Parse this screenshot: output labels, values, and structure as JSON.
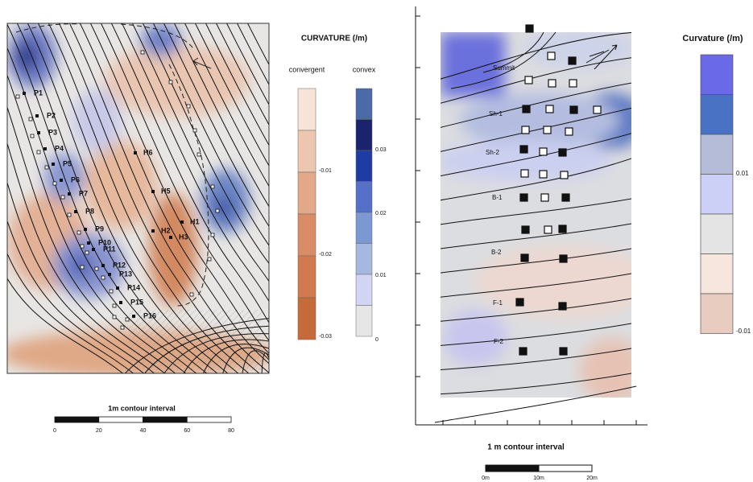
{
  "left_map": {
    "legend_title": "CURVATURE (/m)",
    "convergent_label": "convergent",
    "convex_label": "convex",
    "convergent_ticks": [
      "-0.01",
      "-0.02",
      "-0.03"
    ],
    "convex_ticks": [
      "0.03",
      "0.02",
      "0.01",
      "0"
    ],
    "points": [
      "P1",
      "P2",
      "P3",
      "P4",
      "P5",
      "P6",
      "P7",
      "P8",
      "P9",
      "P10",
      "P11",
      "P12",
      "P13",
      "P14",
      "P15",
      "P16"
    ],
    "hollows": [
      "H6",
      "H5",
      "H1",
      "H2",
      "H3"
    ],
    "scale_title": "1m contour interval",
    "scale_ticks": [
      "0",
      "20",
      "40",
      "60",
      "80"
    ]
  },
  "right_map": {
    "legend_title": "Curvature (/m)",
    "legend_ticks": [
      "0.01",
      "-0.01"
    ],
    "positions": [
      "Summit",
      "Sh-1",
      "Sh-2",
      "B-1",
      "B-2",
      "F-1",
      "F-2"
    ],
    "scale_title": "1 m contour interval",
    "scale_ticks": [
      "0m",
      "10m",
      "20m"
    ]
  }
}
